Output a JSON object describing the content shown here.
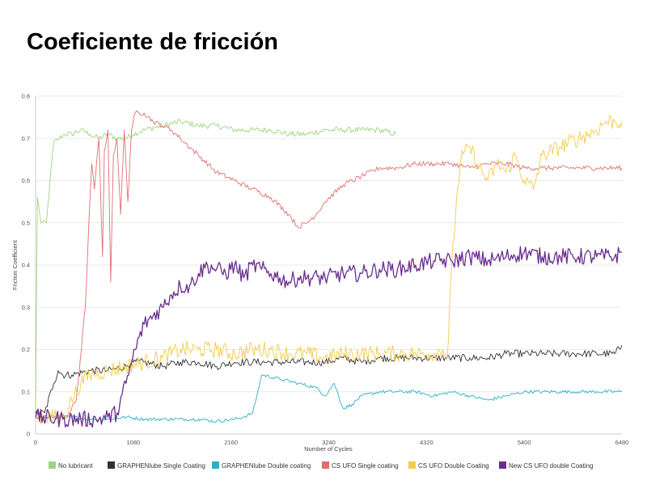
{
  "slide": {
    "title": "Coeficiente de fricción"
  },
  "chart_data": {
    "type": "line",
    "title": "",
    "xlabel": "Number of Cycles",
    "ylabel": "Friction Coefficient",
    "xlim": [
      0,
      6480
    ],
    "ylim": [
      0,
      0.8
    ],
    "x_ticks": [
      0,
      1080,
      2160,
      3240,
      4320,
      5400,
      6480
    ],
    "y_ticks": [
      0,
      0.1,
      0.2,
      0.3,
      0.4,
      0.5,
      0.6,
      0.7,
      0.8
    ],
    "grid": true,
    "legend_position": "bottom",
    "series": [
      {
        "name": "No lubricant",
        "color": "#9fd47f",
        "noise": 0.007,
        "x": [
          0,
          20,
          60,
          120,
          160,
          200,
          260,
          320,
          400,
          500,
          600,
          700,
          800,
          900,
          1000,
          1080,
          1200,
          1400,
          1600,
          1800,
          2000,
          2200,
          2400,
          2600,
          2800,
          3000,
          3200,
          3400,
          3600,
          3800,
          3980
        ],
        "y": [
          0.05,
          0.56,
          0.5,
          0.5,
          0.6,
          0.69,
          0.7,
          0.71,
          0.71,
          0.72,
          0.71,
          0.7,
          0.71,
          0.7,
          0.7,
          0.71,
          0.72,
          0.73,
          0.74,
          0.73,
          0.73,
          0.72,
          0.72,
          0.72,
          0.71,
          0.71,
          0.72,
          0.72,
          0.72,
          0.72,
          0.71
        ]
      },
      {
        "name": "GRAPHENlube Single Coating",
        "color": "#333333",
        "noise": 0.009,
        "x": [
          0,
          100,
          200,
          250,
          300,
          400,
          600,
          800,
          1000,
          1080,
          1200,
          1400,
          1600,
          1800,
          2000,
          2200,
          2400,
          2600,
          2800,
          3000,
          3200,
          3400,
          3600,
          3800,
          4000,
          4200,
          4400,
          4600,
          4800,
          5000,
          5200,
          5400,
          5600,
          5800,
          6000,
          6200,
          6400,
          6480
        ],
        "y": [
          0.05,
          0.05,
          0.12,
          0.15,
          0.14,
          0.14,
          0.15,
          0.15,
          0.16,
          0.17,
          0.17,
          0.16,
          0.17,
          0.17,
          0.16,
          0.17,
          0.17,
          0.17,
          0.17,
          0.17,
          0.17,
          0.18,
          0.17,
          0.18,
          0.18,
          0.18,
          0.18,
          0.18,
          0.18,
          0.18,
          0.19,
          0.19,
          0.19,
          0.19,
          0.19,
          0.19,
          0.19,
          0.21
        ]
      },
      {
        "name": "GRAPHENlube Double coating",
        "color": "#2ab0cc",
        "noise": 0.004,
        "x": [
          0,
          200,
          400,
          600,
          800,
          1000,
          1200,
          1400,
          1600,
          1800,
          2000,
          2200,
          2300,
          2400,
          2500,
          2700,
          2900,
          3100,
          3200,
          3300,
          3400,
          3500,
          3600,
          3800,
          4000,
          4200,
          4400,
          4600,
          4800,
          5000,
          5200,
          5400,
          5600,
          5800,
          6000,
          6200,
          6480
        ],
        "y": [
          0.04,
          0.04,
          0.04,
          0.035,
          0.035,
          0.04,
          0.035,
          0.035,
          0.035,
          0.035,
          0.03,
          0.035,
          0.04,
          0.05,
          0.14,
          0.13,
          0.12,
          0.11,
          0.09,
          0.12,
          0.06,
          0.07,
          0.09,
          0.1,
          0.1,
          0.1,
          0.09,
          0.1,
          0.09,
          0.08,
          0.09,
          0.1,
          0.1,
          0.1,
          0.1,
          0.1,
          0.1
        ]
      },
      {
        "name": "CS UFO Single coating",
        "color": "#e07070",
        "noise": 0.006,
        "x": [
          0,
          120,
          250,
          350,
          450,
          550,
          600,
          620,
          650,
          700,
          740,
          760,
          800,
          830,
          860,
          900,
          940,
          980,
          1020,
          1060,
          1100,
          1200,
          1300,
          1400,
          1500,
          1600,
          1800,
          2000,
          2200,
          2400,
          2600,
          2800,
          2900,
          3000,
          3100,
          3200,
          3400,
          3600,
          3800,
          4000,
          4200,
          4400,
          4600,
          4800,
          5000,
          5200,
          5400,
          5600,
          5800,
          6000,
          6200,
          6480
        ],
        "y": [
          0.04,
          0.04,
          0.04,
          0.04,
          0.08,
          0.3,
          0.55,
          0.64,
          0.58,
          0.7,
          0.42,
          0.67,
          0.72,
          0.36,
          0.66,
          0.7,
          0.52,
          0.72,
          0.55,
          0.72,
          0.76,
          0.76,
          0.74,
          0.73,
          0.72,
          0.7,
          0.66,
          0.62,
          0.6,
          0.58,
          0.56,
          0.52,
          0.49,
          0.5,
          0.52,
          0.55,
          0.59,
          0.61,
          0.63,
          0.63,
          0.64,
          0.64,
          0.64,
          0.63,
          0.64,
          0.64,
          0.63,
          0.63,
          0.63,
          0.63,
          0.63,
          0.63
        ]
      },
      {
        "name": "CS UFO Double Coating",
        "color": "#f2cc4a",
        "noise": 0.02,
        "x": [
          0,
          300,
          400,
          500,
          600,
          800,
          1000,
          1200,
          1400,
          1600,
          1800,
          2000,
          2200,
          2400,
          2600,
          2800,
          3000,
          3200,
          3400,
          3600,
          3800,
          4000,
          4200,
          4400,
          4500,
          4550,
          4600,
          4650,
          4700,
          4800,
          4900,
          5000,
          5100,
          5200,
          5300,
          5400,
          5500,
          5600,
          5800,
          6000,
          6200,
          6300,
          6400,
          6480
        ],
        "y": [
          0.04,
          0.04,
          0.08,
          0.12,
          0.14,
          0.15,
          0.16,
          0.17,
          0.18,
          0.2,
          0.2,
          0.2,
          0.19,
          0.2,
          0.2,
          0.19,
          0.19,
          0.18,
          0.19,
          0.19,
          0.19,
          0.19,
          0.19,
          0.19,
          0.2,
          0.18,
          0.4,
          0.55,
          0.65,
          0.68,
          0.63,
          0.6,
          0.64,
          0.62,
          0.66,
          0.6,
          0.58,
          0.66,
          0.68,
          0.7,
          0.72,
          0.74,
          0.74,
          0.74
        ]
      },
      {
        "name": "New CS UFO double Coating",
        "color": "#6a2d8f",
        "noise": 0.02,
        "x": [
          0,
          300,
          500,
          700,
          800,
          900,
          1000,
          1100,
          1200,
          1300,
          1400,
          1500,
          1600,
          1700,
          1800,
          1900,
          2000,
          2100,
          2200,
          2300,
          2400,
          2500,
          2600,
          2700,
          2800,
          2900,
          3000,
          3200,
          3400,
          3600,
          3800,
          4000,
          4200,
          4400,
          4600,
          4800,
          5000,
          5200,
          5400,
          5600,
          5800,
          6000,
          6200,
          6400,
          6480
        ],
        "y": [
          0.04,
          0.035,
          0.035,
          0.035,
          0.04,
          0.05,
          0.12,
          0.2,
          0.26,
          0.28,
          0.3,
          0.33,
          0.35,
          0.35,
          0.38,
          0.4,
          0.39,
          0.38,
          0.4,
          0.37,
          0.4,
          0.39,
          0.38,
          0.37,
          0.36,
          0.37,
          0.37,
          0.37,
          0.38,
          0.38,
          0.39,
          0.39,
          0.4,
          0.41,
          0.41,
          0.42,
          0.41,
          0.42,
          0.43,
          0.42,
          0.42,
          0.42,
          0.42,
          0.42,
          0.43
        ]
      }
    ]
  }
}
